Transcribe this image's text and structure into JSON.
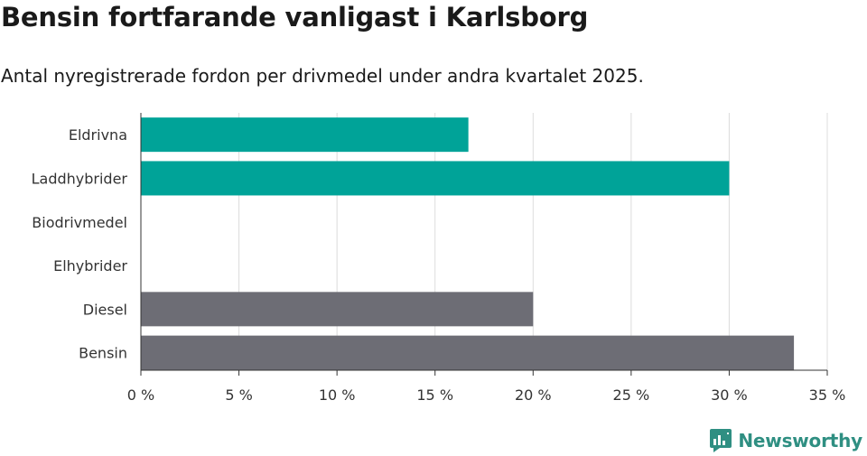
{
  "header": {
    "title": "Bensin fortfarande vanligast i Karlsborg",
    "subtitle": "Antal nyregistrerade fordon per drivmedel under andra kvartalet 2025."
  },
  "brand": {
    "name": "Newsworthy",
    "icon": "newsworthy-logo-icon",
    "color": "#2f8f82"
  },
  "chart_data": {
    "type": "bar",
    "orientation": "horizontal",
    "categories": [
      "Eldrivna",
      "Laddhybrider",
      "Biodrivmedel",
      "Elhybrider",
      "Diesel",
      "Bensin"
    ],
    "values": [
      16.7,
      30.0,
      0,
      0,
      20.0,
      33.3
    ],
    "colors": [
      "#00a398",
      "#00a398",
      "#00a398",
      "#00a398",
      "#6d6d75",
      "#6d6d75"
    ],
    "xlim": [
      0,
      35
    ],
    "ticks": [
      0,
      5,
      10,
      15,
      20,
      25,
      30,
      35
    ],
    "tick_labels": [
      "0 %",
      "5 %",
      "10 %",
      "15 %",
      "20 %",
      "25 %",
      "30 %",
      "35 %"
    ],
    "xlabel": "",
    "ylabel": "",
    "grid": true
  }
}
